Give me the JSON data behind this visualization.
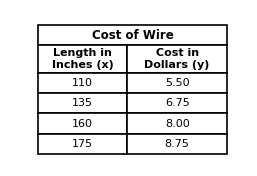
{
  "title": "Cost of Wire",
  "col1_header": "Length in\nInches (x)",
  "col2_header": "Cost in\nDollars (y)",
  "rows": [
    [
      "110",
      "5.50"
    ],
    [
      "135",
      "6.75"
    ],
    [
      "160",
      "8.00"
    ],
    [
      "175",
      "8.75"
    ]
  ],
  "background_color": "#ffffff",
  "title_fontsize": 8.5,
  "header_fontsize": 8,
  "data_fontsize": 8,
  "lw": 1.2
}
